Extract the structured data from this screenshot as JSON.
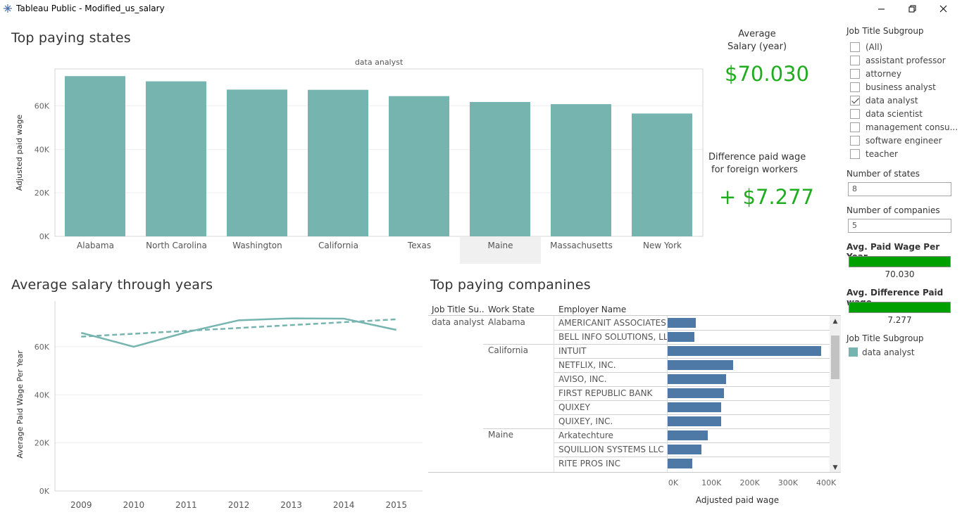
{
  "window": {
    "title": "Tableau Public - Modified_us_salary"
  },
  "top_states": {
    "title": "Top paying states",
    "chart_data": {
      "type": "bar",
      "title": "data analyst",
      "ylabel": "Adjusted paid wage",
      "xlabel": "",
      "categories": [
        "Alabama",
        "North Carolina",
        "Washington",
        "California",
        "Texas",
        "Maine",
        "Massachusetts",
        "New York"
      ],
      "values": [
        73700,
        71300,
        67500,
        67400,
        64500,
        61800,
        60800,
        56500
      ],
      "yticks": [
        0,
        20000,
        40000,
        60000
      ],
      "ytick_labels": [
        "0K",
        "20K",
        "40K",
        "60K"
      ],
      "ylim": [
        0,
        77000
      ],
      "highlighted_category": "Maine",
      "bar_color": "#76b5af",
      "grid": true
    }
  },
  "kpi": {
    "avg_salary_label_1": "Average",
    "avg_salary_label_2": "Salary (year)",
    "avg_salary_value": "$70.030",
    "diff_label_1": "Difference paid wage",
    "diff_label_2": "for foreign workers",
    "diff_value": "+ $7.277",
    "value_color": "#1fad1f"
  },
  "salary_years": {
    "title": "Average salary through years",
    "chart_data": {
      "type": "line",
      "ylabel": "Average Paid Wage Per Year",
      "xlabel": "",
      "x": [
        "2009",
        "2010",
        "2011",
        "2012",
        "2013",
        "2014",
        "2015"
      ],
      "series": [
        {
          "values": [
            65800,
            60000,
            66000,
            71000,
            71800,
            71700,
            67000
          ],
          "style": "solid"
        },
        {
          "values": [
            64200,
            65400,
            66600,
            67800,
            69000,
            70200,
            71400
          ],
          "style": "dashed",
          "role": "trend"
        }
      ],
      "yticks": [
        0,
        20000,
        40000,
        60000
      ],
      "ytick_labels": [
        "0K",
        "20K",
        "40K",
        "60K"
      ],
      "ylim": [
        0,
        79000
      ],
      "line_color": "#76b5af",
      "grid": true
    }
  },
  "companies": {
    "title": "Top paying companines",
    "headers": {
      "job": "Job Title Su..",
      "state": "Work State",
      "employer": "Employer Name"
    },
    "xlabel": "Adjusted paid wage",
    "ticks": [
      0,
      100000,
      200000,
      300000,
      400000
    ],
    "tick_labels": [
      "0K",
      "100K",
      "200K",
      "300K",
      "400K"
    ],
    "xlim": [
      0,
      420000
    ],
    "bar_color": "#4e79a7",
    "job_title": "data analyst",
    "rows": [
      {
        "state": "Alabama",
        "employer": "AMERICANIT ASSOCIATES..",
        "value": 74000
      },
      {
        "state": "",
        "employer": "BELL INFO SOLUTIONS, LLC",
        "value": 70000
      },
      {
        "state": "California",
        "employer": "INTUIT",
        "value": 401000
      },
      {
        "state": "",
        "employer": "NETFLIX, INC.",
        "value": 172000
      },
      {
        "state": "",
        "employer": "AVISO, INC.",
        "value": 152000
      },
      {
        "state": "",
        "employer": "FIRST REPUBLIC BANK",
        "value": 148000
      },
      {
        "state": "",
        "employer": "QUIXEY",
        "value": 140000
      },
      {
        "state": "",
        "employer": "QUIXEY, INC.",
        "value": 140000
      },
      {
        "state": "Maine",
        "employer": "Arkatechture",
        "value": 105000
      },
      {
        "state": "",
        "employer": "SQUILLION SYSTEMS LLC",
        "value": 88000
      },
      {
        "state": "",
        "employer": "RITE PROS INC",
        "value": 64000
      }
    ]
  },
  "filters": {
    "job_subgroup_title": "Job Title Subgroup",
    "items": [
      {
        "label": "(All)",
        "checked": false
      },
      {
        "label": "assistant professor",
        "checked": false
      },
      {
        "label": "attorney",
        "checked": false
      },
      {
        "label": "business analyst",
        "checked": false
      },
      {
        "label": "data analyst",
        "checked": true
      },
      {
        "label": "data scientist",
        "checked": false
      },
      {
        "label": "management consu...",
        "checked": false
      },
      {
        "label": "software engineer",
        "checked": false
      },
      {
        "label": "teacher",
        "checked": false
      }
    ],
    "num_states_label": "Number of states",
    "num_states_value": "8",
    "num_companies_label": "Number of companies",
    "num_companies_value": "5",
    "avg_paid_label": "Avg. Paid Wage Per Year",
    "avg_paid_value": "70.030",
    "avg_diff_label": "Avg. Difference Paid wage",
    "avg_diff_value": "7.277",
    "legend_title": "Job Title Subgroup",
    "legend_item": "data analyst",
    "legend_color": "#76b5af",
    "bar_color": "#00a000"
  }
}
